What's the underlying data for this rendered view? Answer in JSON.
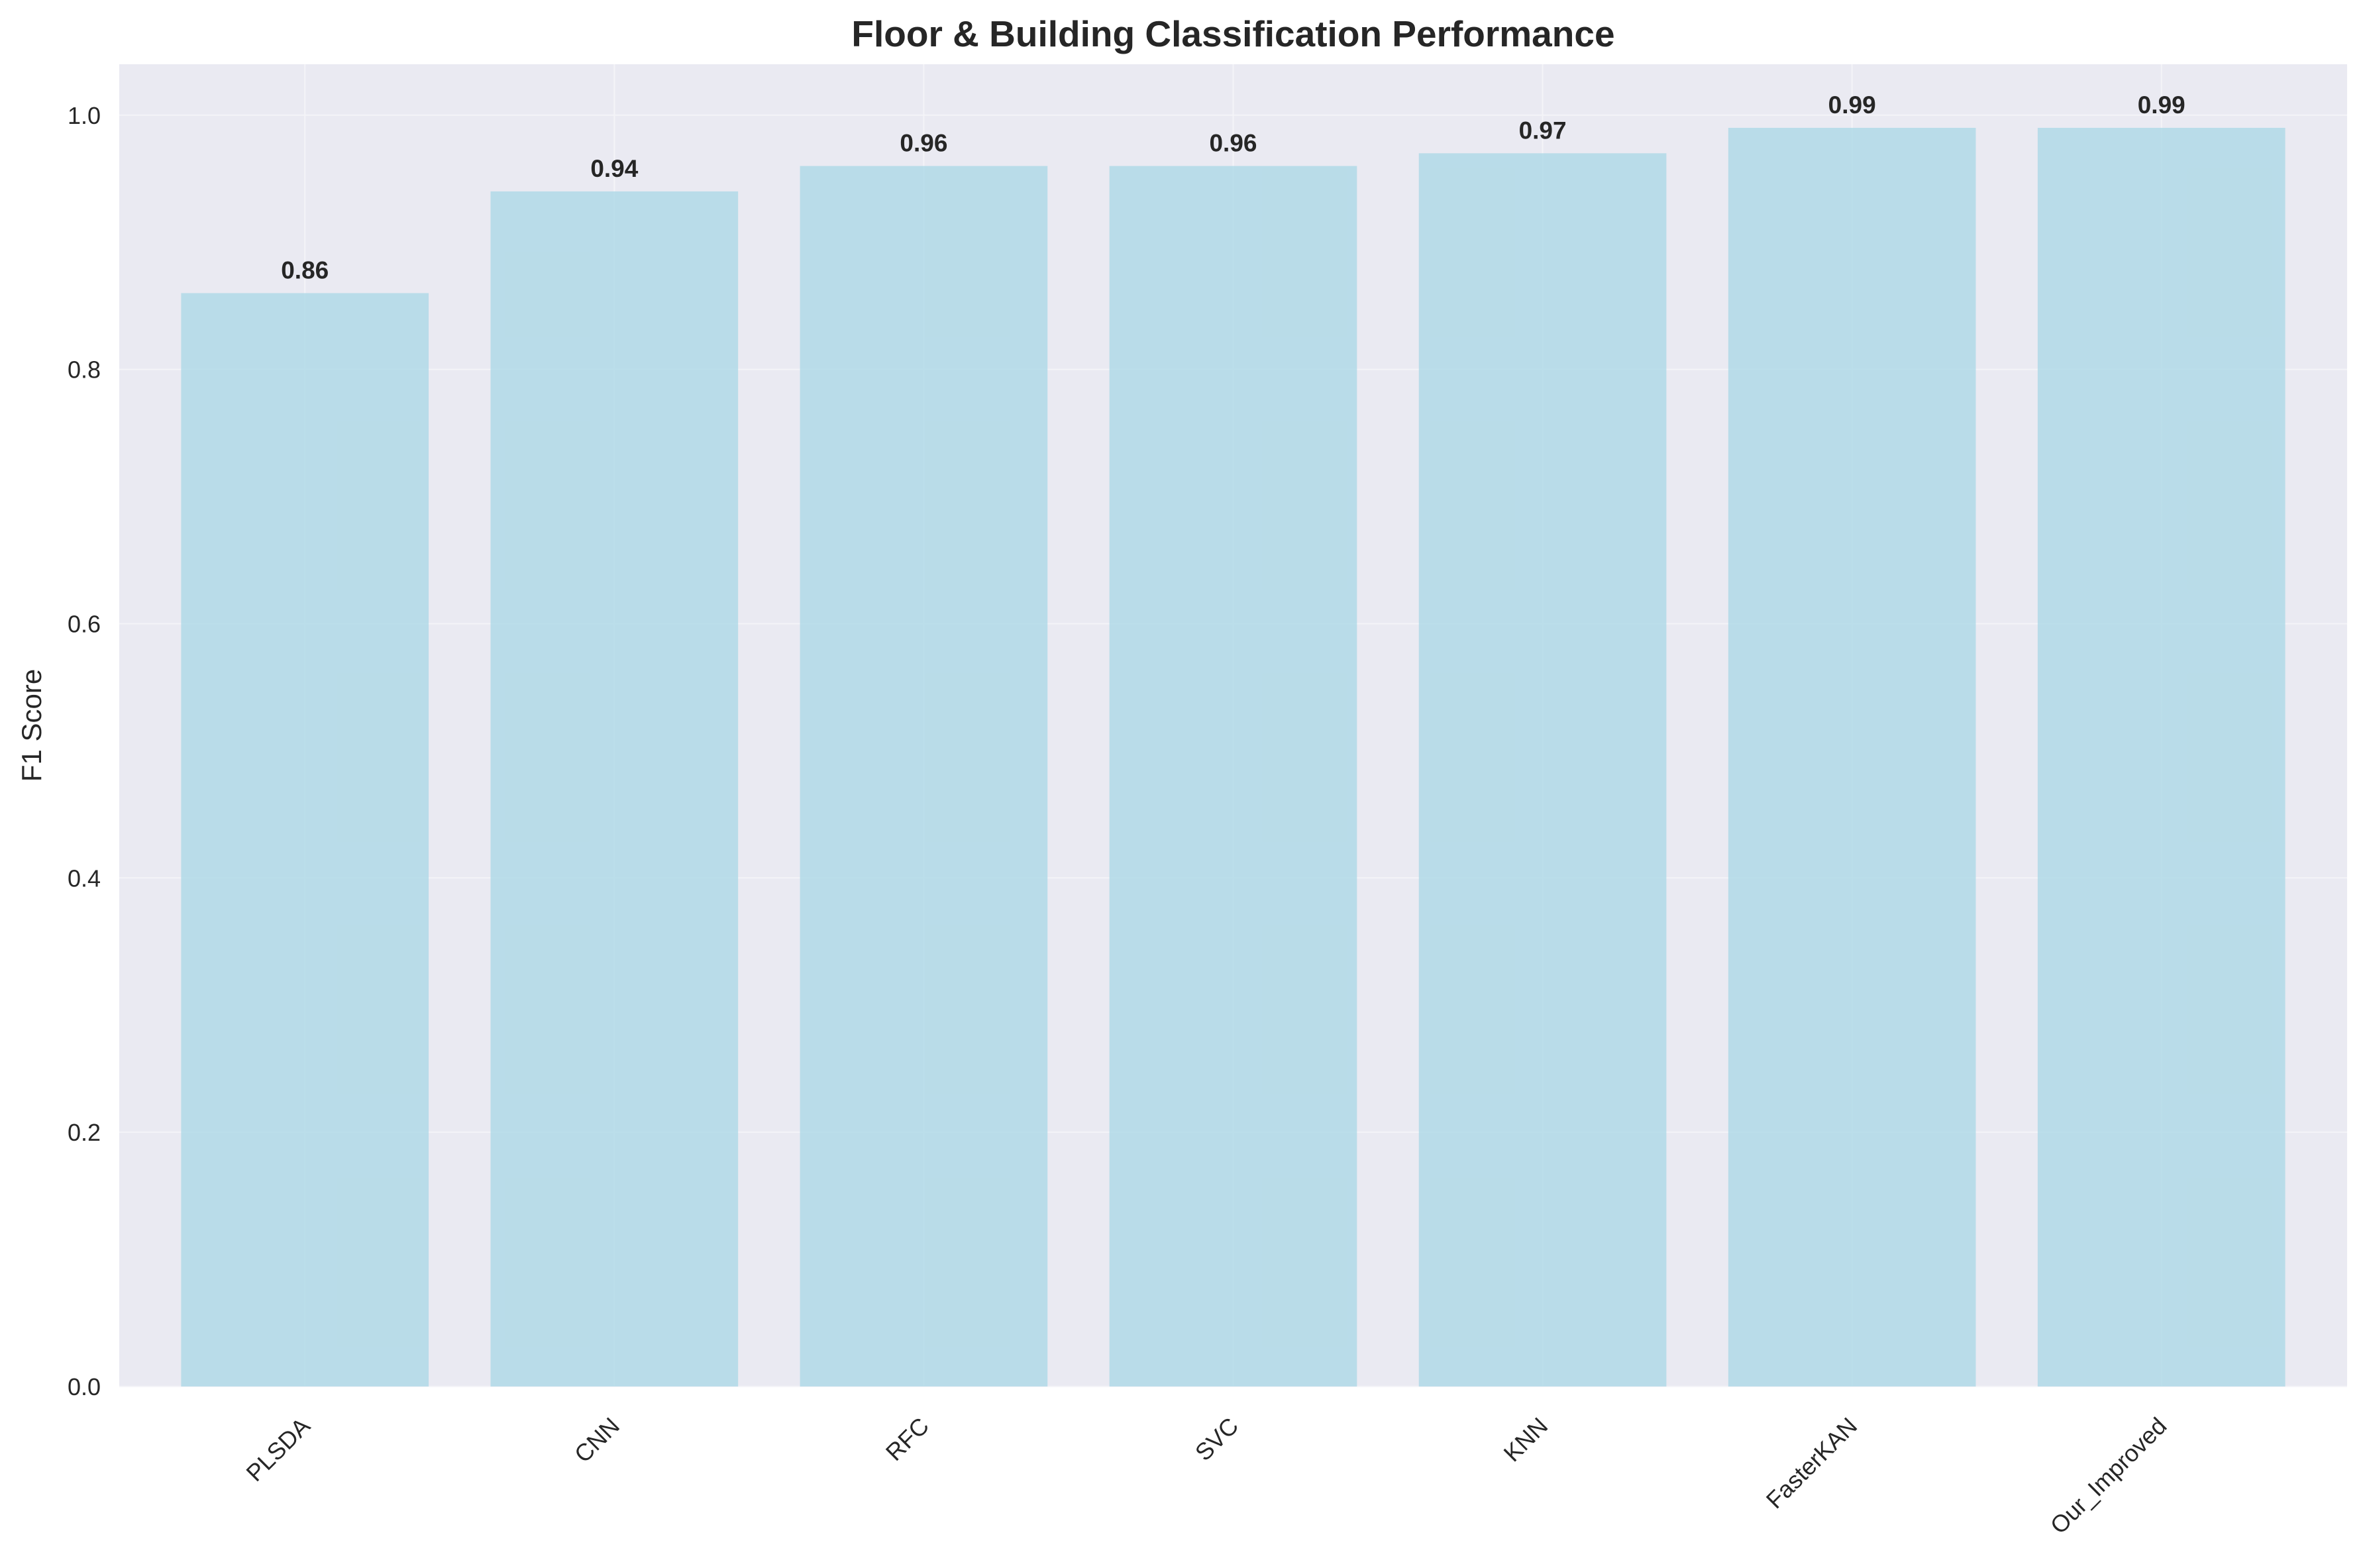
{
  "chart_data": {
    "type": "bar",
    "title": "Floor & Building Classification Performance",
    "xlabel": "",
    "ylabel": "F1 Score",
    "categories": [
      "PLSDA",
      "CNN",
      "RFC",
      "SVC",
      "KNN",
      "FasterKAN",
      "Our_Improved"
    ],
    "values": [
      0.86,
      0.94,
      0.96,
      0.96,
      0.97,
      0.99,
      0.99
    ],
    "data_labels": [
      "0.86",
      "0.94",
      "0.96",
      "0.96",
      "0.97",
      "0.99",
      "0.99"
    ],
    "ylim": [
      0,
      1.04
    ],
    "yticks": [
      0.0,
      0.2,
      0.4,
      0.6,
      0.8,
      1.0
    ],
    "ytick_labels": [
      "0.0",
      "0.2",
      "0.4",
      "0.6",
      "0.8",
      "1.0"
    ],
    "grid": true,
    "legend": "none",
    "bar_color": "#add8e6",
    "plot_background": "#eaeaf2"
  }
}
